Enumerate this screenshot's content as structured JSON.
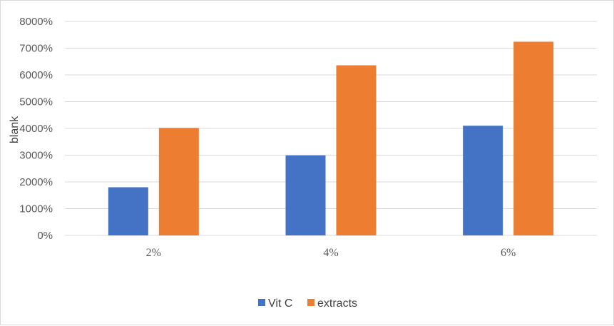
{
  "chart_data": {
    "type": "bar",
    "title": "",
    "xlabel": "",
    "ylabel": "blank",
    "categories": [
      "2%",
      "4%",
      "6%"
    ],
    "series": [
      {
        "name": "Vit C",
        "color": "#4472c4",
        "values": [
          1800,
          2990,
          4100
        ]
      },
      {
        "name": "extracts",
        "color": "#ed7d31",
        "values": [
          4020,
          6360,
          7240
        ]
      }
    ],
    "ylim": [
      0,
      8000
    ],
    "yticks": [
      0,
      1000,
      2000,
      3000,
      4000,
      5000,
      6000,
      7000,
      8000
    ],
    "ytick_labels": [
      "0%",
      "1000%",
      "2000%",
      "3000%",
      "4000%",
      "5000%",
      "6000%",
      "7000%",
      "8000%"
    ],
    "grid": true,
    "legend_position": "bottom"
  }
}
